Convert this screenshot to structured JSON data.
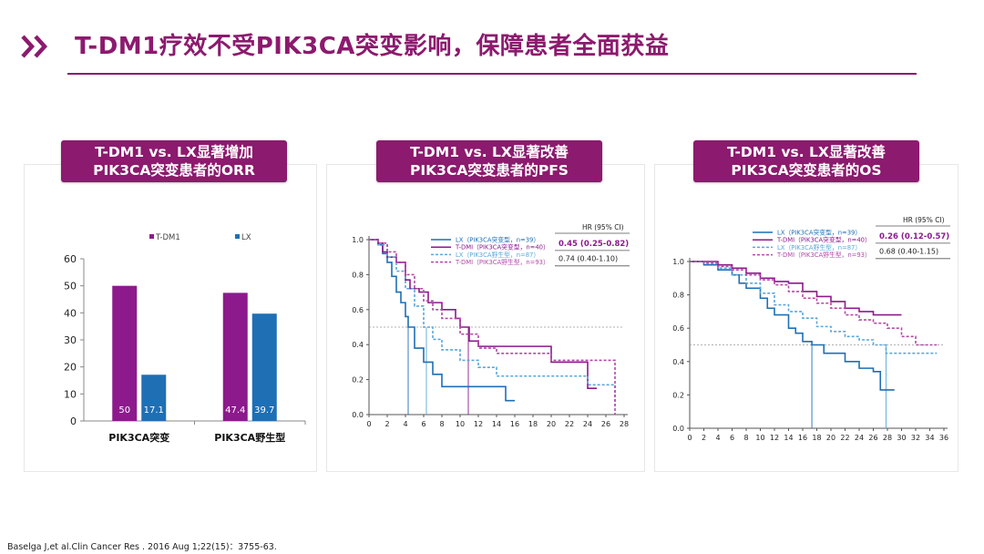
{
  "title": "T-DM1疗效不受PIK3CA突变影响，保障患者全面获益",
  "citation": "Baselga J,et al.Clin Cancer Res . 2016  Aug 1;22(15)：3755-63.",
  "colors": {
    "accent": "#8c1a6e",
    "tdm1": "#8c1a8c",
    "lx": "#1f6fb5",
    "light_blue": "#5aa8d8"
  },
  "panels": [
    {
      "line1": "T-DM1 vs. LX显著增加",
      "line2": "PIK3CA突变患者的ORR"
    },
    {
      "line1": "T-DM1 vs. LX显著改善",
      "line2": "PIK3CA突变患者的PFS"
    },
    {
      "line1": "T-DM1 vs. LX显著改善",
      "line2": "PIK3CA突变患者的OS"
    }
  ],
  "chart_data": [
    {
      "type": "bar",
      "categories": [
        "PIK3CA突变",
        "PIK3CA野生型"
      ],
      "series": [
        {
          "name": "T-DM1",
          "color": "#8c1a8c",
          "values": [
            50,
            47.4
          ],
          "labels": [
            "50",
            "47.4"
          ]
        },
        {
          "name": "LX",
          "color": "#1f6fb5",
          "values": [
            17.1,
            39.7
          ],
          "labels": [
            "17.1",
            "39.7"
          ]
        }
      ],
      "ylim": [
        0,
        60
      ],
      "yticks": [
        "0",
        "10",
        "20",
        "30",
        "40",
        "50",
        "60"
      ],
      "legend_position": "top"
    },
    {
      "type": "line",
      "xlim": [
        0,
        28
      ],
      "ylim": [
        0,
        1
      ],
      "xticks": [
        "0",
        "2",
        "4",
        "6",
        "8",
        "10",
        "12",
        "14",
        "16",
        "18",
        "20",
        "22",
        "24",
        "26",
        "28"
      ],
      "yticks": [
        "0.0",
        "0.2",
        "0.4",
        "0.6",
        "0.8",
        "1.0"
      ],
      "reference_y": 0.5,
      "medians": {
        "lx_mut": 4.3,
        "tdm1_mut": 10.9,
        "lx_wt": 6.3
      },
      "hr_header": "HR  (95%  CI)",
      "hr_rows": [
        {
          "value": "0.45  (0.25-0.82)",
          "bold": true
        },
        {
          "value": "0.74  (0.40-1.10)",
          "bold": false
        }
      ],
      "series": [
        {
          "name": "LX（PIK3CA突变型，n=39）",
          "color": "#1f6fb5",
          "dash": "",
          "x": [
            0,
            1,
            1.5,
            2,
            2.5,
            3,
            3.5,
            4,
            4.3,
            5,
            6,
            7,
            8,
            9,
            12,
            15,
            16
          ],
          "y": [
            1,
            0.97,
            0.92,
            0.87,
            0.79,
            0.7,
            0.64,
            0.56,
            0.5,
            0.38,
            0.3,
            0.23,
            0.16,
            0.16,
            0.16,
            0.08,
            0.08
          ]
        },
        {
          "name": "T-DMI（PIK3CA突变型，n=40）",
          "color": "#8c1a8c",
          "dash": "",
          "x": [
            0,
            1,
            1.5,
            2,
            3,
            4,
            4.5,
            5.5,
            6.5,
            8,
            9.5,
            10,
            11,
            12,
            14,
            16,
            18,
            20,
            24,
            25
          ],
          "y": [
            1,
            0.98,
            0.93,
            0.9,
            0.87,
            0.77,
            0.72,
            0.7,
            0.64,
            0.6,
            0.55,
            0.5,
            0.42,
            0.39,
            0.39,
            0.39,
            0.39,
            0.3,
            0.15,
            0.15
          ]
        },
        {
          "name": "LX（PIK3CA野生型，n=87）",
          "color": "#5aa8d8",
          "dash": "3,2",
          "x": [
            0,
            1,
            2,
            3,
            4,
            5,
            6,
            7,
            8,
            10,
            12,
            14,
            16,
            20,
            24,
            26,
            27
          ],
          "y": [
            1,
            0.97,
            0.9,
            0.82,
            0.72,
            0.62,
            0.5,
            0.43,
            0.37,
            0.31,
            0.27,
            0.22,
            0.22,
            0.22,
            0.17,
            0.17,
            0.05
          ]
        },
        {
          "name": "T-DMI（PIK3CA野生型，n=93）",
          "color": "#b24aa6",
          "dash": "3,2",
          "x": [
            0,
            1,
            2,
            3,
            4,
            5,
            6,
            7,
            8,
            10,
            12,
            14,
            16,
            18,
            20,
            22,
            24,
            26,
            27
          ],
          "y": [
            1,
            0.98,
            0.93,
            0.87,
            0.8,
            0.72,
            0.65,
            0.6,
            0.55,
            0.46,
            0.38,
            0.35,
            0.35,
            0.35,
            0.31,
            0.31,
            0.31,
            0.31,
            0.0
          ]
        }
      ]
    },
    {
      "type": "line",
      "xlim": [
        0,
        36
      ],
      "ylim": [
        0,
        1
      ],
      "xticks": [
        "0",
        "2",
        "4",
        "6",
        "8",
        "10",
        "12",
        "14",
        "16",
        "18",
        "20",
        "22",
        "24",
        "26",
        "28",
        "30",
        "32",
        "34",
        "36"
      ],
      "yticks": [
        "0.0",
        "0.2",
        "0.4",
        "0.6",
        "0.8",
        "1.0"
      ],
      "reference_y": 0.5,
      "medians": {
        "lx_mut": 17.3,
        "lx_wt": 27.8
      },
      "hr_header": "HR  (95%  CI)",
      "hr_rows": [
        {
          "value": "0.26  (0.12-0.57)",
          "bold": true
        },
        {
          "value": "0.68  (0.40-1.15)",
          "bold": false
        }
      ],
      "series": [
        {
          "name": "LX（PIK3CA突变型，n=39）",
          "color": "#1f6fb5",
          "dash": "",
          "x": [
            0,
            2,
            4,
            6,
            7,
            8,
            10,
            11,
            12,
            14,
            15,
            16,
            17.3,
            19,
            22,
            24,
            26,
            27,
            28,
            29
          ],
          "y": [
            1,
            0.98,
            0.95,
            0.92,
            0.87,
            0.84,
            0.78,
            0.72,
            0.68,
            0.6,
            0.57,
            0.52,
            0.5,
            0.45,
            0.4,
            0.36,
            0.34,
            0.23,
            0.23,
            0.23
          ]
        },
        {
          "name": "T-DMI（PIK3CA突变型，n=40）",
          "color": "#8c1a8c",
          "dash": "",
          "x": [
            0,
            4,
            6,
            8,
            10,
            12,
            14,
            16,
            18,
            20,
            22,
            24,
            26,
            28,
            30
          ],
          "y": [
            1,
            0.98,
            0.96,
            0.93,
            0.9,
            0.88,
            0.87,
            0.82,
            0.79,
            0.76,
            0.72,
            0.7,
            0.68,
            0.68,
            0.68
          ]
        },
        {
          "name": "LX（PIK3CA野生型，n=87）",
          "color": "#5aa8d8",
          "dash": "3,2",
          "x": [
            0,
            2,
            4,
            6,
            8,
            10,
            12,
            14,
            16,
            18,
            20,
            22,
            24,
            26,
            27.8,
            30,
            32,
            35
          ],
          "y": [
            1,
            0.99,
            0.96,
            0.92,
            0.87,
            0.81,
            0.74,
            0.7,
            0.66,
            0.61,
            0.58,
            0.55,
            0.53,
            0.5,
            0.45,
            0.45,
            0.45,
            0.45
          ]
        },
        {
          "name": "T-DMI（PIK3CA野生型，n=93）",
          "color": "#b24aa6",
          "dash": "3,2",
          "x": [
            0,
            2,
            4,
            6,
            8,
            10,
            12,
            14,
            16,
            18,
            20,
            22,
            24,
            26,
            28,
            30,
            32,
            34,
            35
          ],
          "y": [
            1,
            0.99,
            0.97,
            0.95,
            0.92,
            0.89,
            0.86,
            0.82,
            0.78,
            0.75,
            0.72,
            0.68,
            0.65,
            0.63,
            0.6,
            0.55,
            0.5,
            0.5,
            0.5
          ]
        }
      ]
    }
  ]
}
